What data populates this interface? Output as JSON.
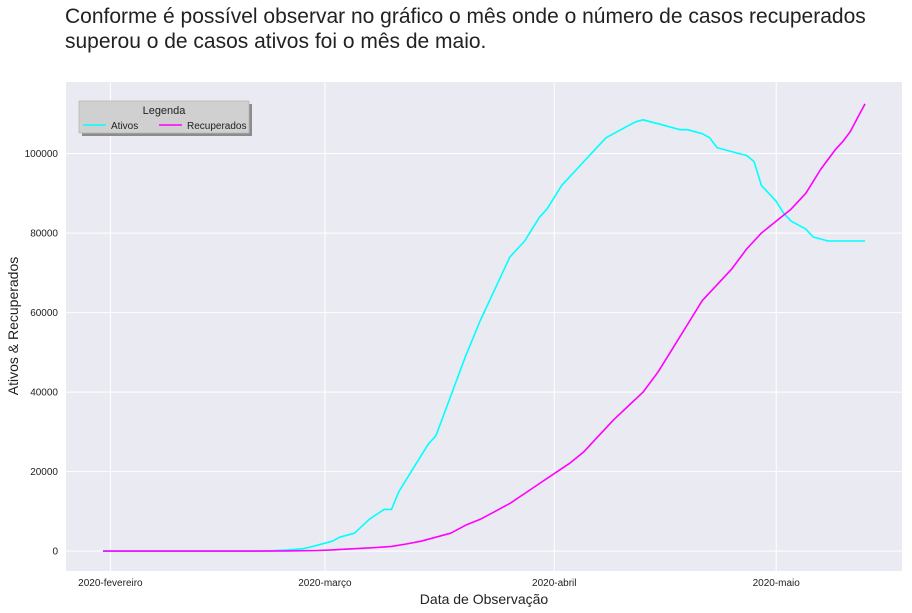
{
  "chart_data": {
    "type": "line",
    "title": "Conforme é possível observar no gráfico o mês onde o número de casos recuperados superou o de casos ativos foi o mês de maio.",
    "xlabel": "Data de Observação",
    "ylabel": "Ativos & Recuperados",
    "x_ticks": [
      "2020-fevereiro",
      "2020-março",
      "2020-abril",
      "2020-maio"
    ],
    "x_tick_days": [
      0,
      29,
      60,
      90
    ],
    "xlim_days": [
      -6,
      107
    ],
    "ylim": [
      -5000,
      118000
    ],
    "y_ticks": [
      0,
      20000,
      40000,
      60000,
      80000,
      100000
    ],
    "grid": true,
    "legend": {
      "title": "Legenda",
      "placement": "top-left"
    },
    "series": [
      {
        "name": "Ativos",
        "color": "#00ffff",
        "x_days": [
          -1,
          10,
          20,
          22,
          24,
          26,
          27,
          28,
          29,
          30,
          31,
          33,
          35,
          37,
          38,
          39,
          40,
          41,
          42,
          43,
          44,
          46,
          47,
          48,
          50,
          51,
          52,
          53,
          54,
          55,
          56,
          57,
          58,
          59,
          60,
          61,
          62,
          63,
          64,
          65,
          66,
          67,
          68,
          69,
          70,
          71,
          72,
          73,
          74,
          75,
          76,
          77,
          78,
          79,
          80,
          81,
          82,
          83,
          84,
          85,
          86,
          87,
          88,
          89,
          90,
          91,
          92,
          93,
          94,
          95,
          96,
          97,
          98,
          99,
          100,
          101,
          102
        ],
        "values": [
          0,
          0,
          0,
          100,
          300,
          600,
          1000,
          1500,
          2000,
          2500,
          3500,
          4500,
          8000,
          10500,
          10500,
          15000,
          18000,
          21000,
          24000,
          27000,
          29000,
          39000,
          44000,
          49000,
          58000,
          62000,
          66000,
          70000,
          74000,
          76000,
          78000,
          81000,
          84000,
          86000,
          89000,
          92000,
          94000,
          96000,
          98000,
          100000,
          102000,
          104000,
          105000,
          106000,
          107000,
          108000,
          108500,
          108000,
          107500,
          107000,
          106500,
          106000,
          106000,
          105500,
          105000,
          104000,
          101500,
          101000,
          100500,
          100000,
          99500,
          98000,
          92000,
          90000,
          88000,
          85000,
          83000,
          82000,
          81000,
          79000,
          78500,
          78000,
          78000,
          78000,
          78000,
          78000,
          78000
        ]
      },
      {
        "name": "Recuperados",
        "color": "#ff00ff",
        "x_days": [
          -1,
          10,
          20,
          24,
          28,
          30,
          32,
          34,
          36,
          38,
          40,
          42,
          44,
          46,
          48,
          50,
          52,
          54,
          56,
          58,
          60,
          62,
          64,
          66,
          68,
          70,
          72,
          74,
          75,
          76,
          78,
          80,
          82,
          84,
          86,
          88,
          90,
          92,
          94,
          95,
          96,
          97,
          98,
          99,
          100,
          101,
          102
        ],
        "values": [
          0,
          0,
          0,
          50,
          150,
          300,
          500,
          700,
          900,
          1200,
          1800,
          2500,
          3500,
          4500,
          6500,
          8000,
          10000,
          12000,
          14500,
          17000,
          19500,
          22000,
          25000,
          29000,
          33000,
          36500,
          40000,
          45000,
          48000,
          51000,
          57000,
          63000,
          67000,
          71000,
          76000,
          80000,
          83000,
          86000,
          90000,
          93000,
          96000,
          98500,
          101000,
          103000,
          105500,
          109000,
          112500
        ]
      }
    ]
  }
}
